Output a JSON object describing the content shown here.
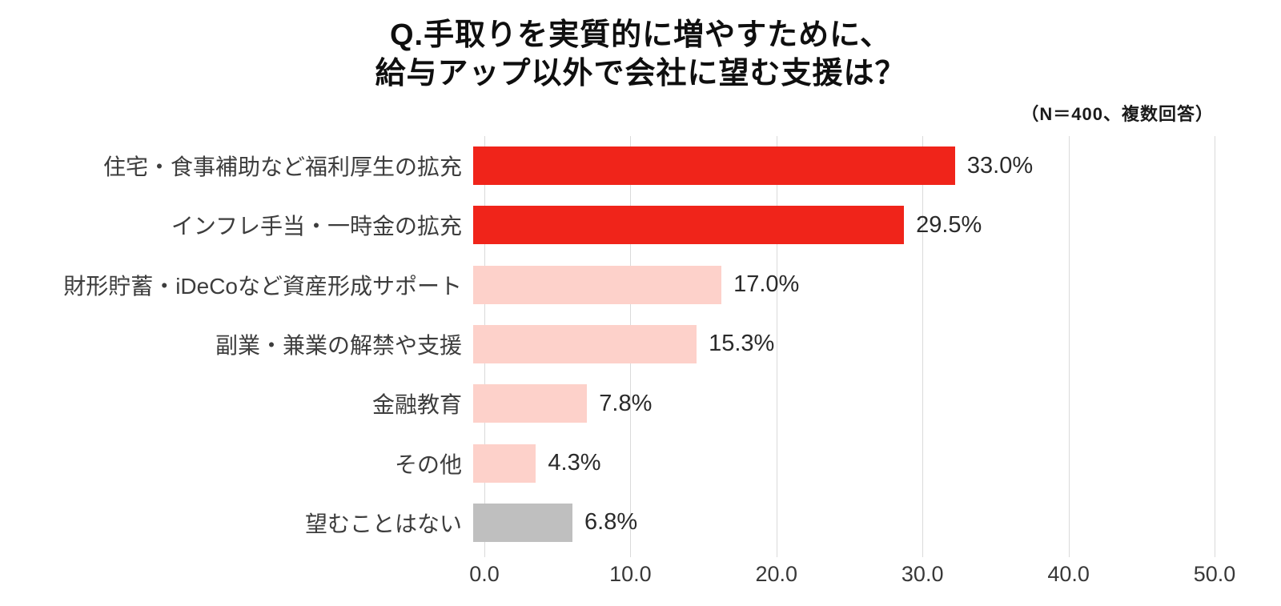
{
  "title": {
    "line1": "Q.手取りを実質的に増やすために、",
    "line2": "給与アップ以外で会社に望む支援は？"
  },
  "note": "（N＝400、複数回答）",
  "chart_data": {
    "type": "bar",
    "orientation": "horizontal",
    "title": "Q.手取りを実質的に増やすために、給与アップ以外で会社に望む支援は？",
    "subtitle": "（N＝400、複数回答）",
    "categories": [
      "住宅・食事補助など福利厚生の拡充",
      "インフレ手当・一時金の拡充",
      "財形貯蓄・iDeCoなど資産形成サポート",
      "副業・兼業の解禁や支援",
      "金融教育",
      "その他",
      "望むことはない"
    ],
    "values": [
      33.0,
      29.5,
      17.0,
      15.3,
      7.8,
      4.3,
      6.8
    ],
    "value_labels": [
      "33.0%",
      "29.5%",
      "17.0%",
      "15.3%",
      "7.8%",
      "4.3%",
      "6.8%"
    ],
    "bar_colors": [
      "#f0241a",
      "#f0241a",
      "#fdd1ca",
      "#fdd1ca",
      "#fdd1ca",
      "#fdd1ca",
      "#bfbfbf"
    ],
    "colors": {
      "highlight_red": "#f0241a",
      "light_pink": "#fdd1ca",
      "neutral_gray": "#bfbfbf",
      "gridline": "#dadada"
    },
    "xlim": [
      0,
      50
    ],
    "x_ticks": [
      "0.0",
      "10.0",
      "20.0",
      "30.0",
      "40.0",
      "50.0"
    ],
    "grid": true,
    "legend": false
  }
}
